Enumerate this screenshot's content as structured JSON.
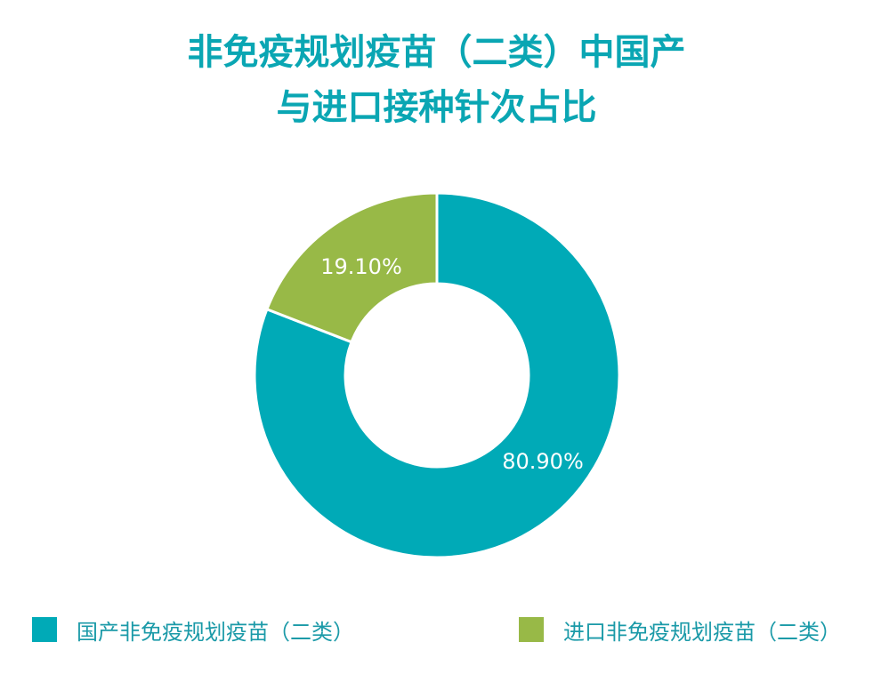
{
  "chart_data": {
    "type": "pie",
    "title_lines": [
      "非免疫规划疫苗（二类）中国产",
      "与进口接种针次占比"
    ],
    "series": [
      {
        "name": "国产非免疫规划疫苗（二类）",
        "value": 80.9,
        "label": "80.90%",
        "color": "#00aab7"
      },
      {
        "name": "进口非免疫规划疫苗（二类）",
        "value": 19.1,
        "label": "19.10%",
        "color": "#98b947"
      }
    ],
    "donut": true,
    "legend_position": "bottom",
    "label_color": "#ffffff"
  },
  "legend": {
    "items": [
      {
        "label": "国产非免疫规划疫苗（二类）",
        "color": "#00aab7"
      },
      {
        "label": "进口非免疫规划疫苗（二类）",
        "color": "#98b947"
      }
    ]
  }
}
